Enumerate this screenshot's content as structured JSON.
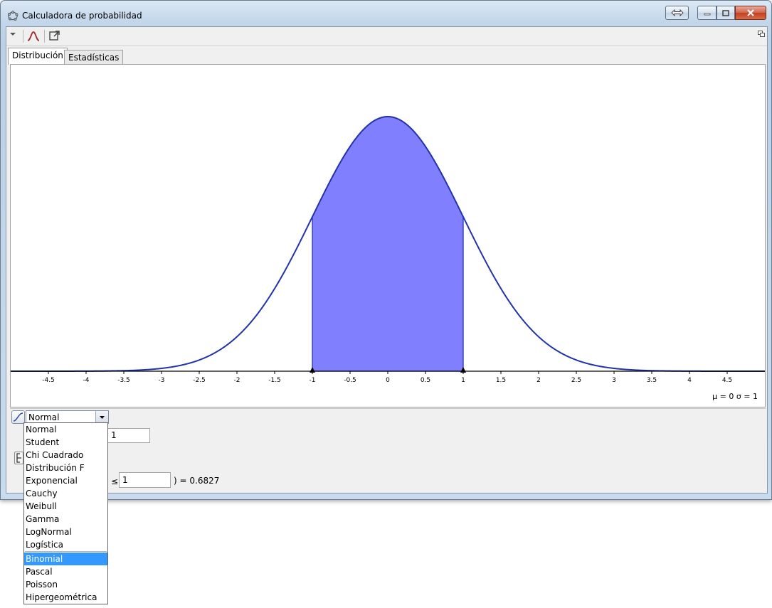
{
  "window": {
    "title": "Calculadora de probabilidad"
  },
  "tabs": [
    {
      "label": "Distribución",
      "active": true
    },
    {
      "label": "Estadísticas",
      "active": false
    }
  ],
  "plot": {
    "params_text": "μ = 0   σ = 1",
    "fill_color": "#8080ff",
    "curve_color": "#2233aa"
  },
  "chart_data": {
    "type": "area",
    "distribution": "Normal",
    "mean": 0,
    "sd": 1,
    "shaded_interval": [
      -1,
      1
    ],
    "xlim": [
      -5,
      5
    ],
    "x_ticks": [
      "-4.5",
      "-4",
      "-3.5",
      "-3",
      "-2.5",
      "-2",
      "-1.5",
      "-1",
      "-0.5",
      "0",
      "0.5",
      "1",
      "1.5",
      "2",
      "2.5",
      "3",
      "3.5",
      "4",
      "4.5"
    ]
  },
  "controls": {
    "distribution_selected": "Normal",
    "param_value": "1",
    "prob_prefix": "≤",
    "upper_value": "1",
    "result_text": ") =  0.6827"
  },
  "dropdown": {
    "items": [
      "Normal",
      "Student",
      "Chi Cuadrado",
      "Distribución F",
      "Exponencial",
      "Cauchy",
      "Weibull",
      "Gamma",
      "LogNormal",
      "Logística"
    ],
    "discrete_items": [
      "Binomial",
      "Pascal",
      "Poisson",
      "Hipergeométrica"
    ],
    "highlighted": "Binomial"
  }
}
